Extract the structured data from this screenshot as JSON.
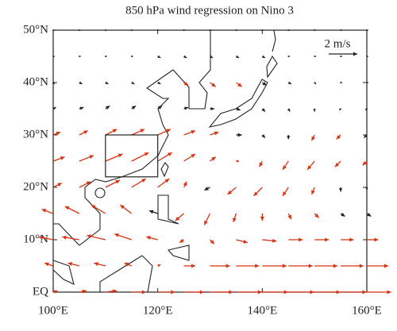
{
  "chart_data": {
    "type": "quiver",
    "title": "850 hPa wind regression on Nino 3",
    "lon": [
      100,
      105,
      110,
      115,
      120,
      125,
      130,
      135,
      140,
      145,
      150,
      155,
      160
    ],
    "lat": [
      0,
      5,
      10,
      15,
      20,
      25,
      30,
      35,
      40,
      45,
      50
    ],
    "u": [
      [
        0.3,
        0.5,
        0.8,
        1.0,
        1.2,
        1.4,
        1.6,
        1.8,
        1.8,
        1.8,
        1.8,
        1.8,
        1.7
      ],
      [
        -0.6,
        -0.8,
        -0.8,
        -0.5,
        0.2,
        0.8,
        1.4,
        1.6,
        1.7,
        1.7,
        1.6,
        1.6,
        1.5
      ],
      [
        -1.0,
        -1.2,
        -1.3,
        -1.2,
        -0.8,
        -0.3,
        0.3,
        0.8,
        1.0,
        1.0,
        1.0,
        0.9,
        0.8
      ],
      [
        -0.8,
        -1.0,
        -1.0,
        -0.8,
        -0.6,
        -0.6,
        -0.4,
        -0.2,
        0,
        0.2,
        0.3,
        0.3,
        0.3
      ],
      [
        0.6,
        0.8,
        1.0,
        1.0,
        0.8,
        0.2,
        -0.4,
        -0.6,
        -0.6,
        -0.4,
        -0.2,
        0,
        0
      ],
      [
        0.8,
        1.0,
        1.2,
        1.2,
        1.0,
        0.8,
        0.4,
        0.2,
        -0.2,
        -0.4,
        -0.5,
        -0.4,
        -0.3
      ],
      [
        0.5,
        0.6,
        0.8,
        0.9,
        0.9,
        0.8,
        0.6,
        0.4,
        0.2,
        0,
        -0.2,
        -0.3,
        -0.2
      ],
      [
        0.2,
        0.3,
        0.3,
        0.3,
        0.3,
        0.3,
        0.3,
        0.3,
        0.2,
        0.1,
        0,
        -0.1,
        -0.1
      ],
      [
        0.1,
        0.2,
        0.2,
        0.2,
        0.2,
        0.3,
        0.4,
        0.4,
        0.3,
        0.2,
        0.1,
        0.1,
        0.1
      ],
      [
        0.1,
        0.1,
        0.1,
        0.1,
        0.2,
        0.2,
        0.2,
        0.2,
        0.2,
        0.1,
        0.1,
        0.1,
        0.1
      ],
      [
        0.1,
        0.1,
        0.1,
        0.1,
        0.1,
        0.1,
        0.1,
        0.1,
        0.1,
        0.1,
        0.1,
        0.1,
        0.1
      ]
    ],
    "v": [
      [
        0.1,
        0.1,
        0.1,
        0,
        0,
        0,
        0,
        0,
        0,
        0,
        0,
        0,
        0
      ],
      [
        0.2,
        0.2,
        0.2,
        0.2,
        0.1,
        0,
        0,
        0,
        0,
        0,
        0,
        0,
        0
      ],
      [
        0.2,
        0.2,
        0.3,
        0.4,
        0.2,
        -0.2,
        -0.3,
        -0.2,
        -0.1,
        0,
        0,
        0,
        0
      ],
      [
        0.3,
        0.5,
        0.6,
        0.6,
        0.2,
        -0.5,
        -0.8,
        -0.6,
        -0.5,
        -0.4,
        -0.3,
        -0.2,
        -0.2
      ],
      [
        0.3,
        0.4,
        0.5,
        0.6,
        0.6,
        0.4,
        -0.2,
        -0.5,
        -0.6,
        -0.6,
        -0.5,
        -0.3,
        -0.2
      ],
      [
        0.3,
        0.4,
        0.5,
        0.6,
        0.6,
        0.5,
        0.3,
        0,
        -0.4,
        -0.6,
        -0.6,
        -0.4,
        -0.3
      ],
      [
        0.2,
        0.3,
        0.4,
        0.4,
        0.4,
        0.3,
        0.2,
        0,
        -0.2,
        -0.3,
        -0.4,
        -0.3,
        -0.2
      ],
      [
        0.1,
        0.1,
        0.2,
        0.2,
        0.2,
        0.1,
        0,
        -0.1,
        -0.2,
        -0.2,
        -0.2,
        -0.1,
        -0.1
      ],
      [
        -0.1,
        -0.1,
        -0.1,
        -0.1,
        -0.1,
        -0.2,
        -0.3,
        -0.3,
        -0.2,
        -0.1,
        -0.1,
        0,
        0
      ],
      [
        0,
        0,
        0,
        0,
        -0.1,
        -0.1,
        -0.1,
        -0.1,
        -0.1,
        0,
        0,
        0,
        0
      ],
      [
        0,
        0,
        0,
        0,
        0,
        0,
        0,
        0,
        0,
        0,
        0,
        0,
        0
      ]
    ],
    "significant": [
      [
        true,
        true,
        true,
        true,
        true,
        true,
        true,
        true,
        true,
        true,
        true,
        true,
        true
      ],
      [
        true,
        true,
        true,
        true,
        true,
        true,
        true,
        true,
        true,
        true,
        true,
        true,
        true
      ],
      [
        true,
        true,
        true,
        true,
        true,
        true,
        true,
        true,
        true,
        true,
        true,
        true,
        true
      ],
      [
        true,
        true,
        true,
        true,
        false,
        true,
        true,
        true,
        true,
        true,
        true,
        false,
        false
      ],
      [
        true,
        true,
        true,
        true,
        true,
        true,
        false,
        true,
        true,
        true,
        true,
        false,
        false
      ],
      [
        true,
        true,
        true,
        true,
        true,
        true,
        true,
        true,
        true,
        true,
        true,
        true,
        true
      ],
      [
        true,
        true,
        true,
        true,
        true,
        true,
        true,
        false,
        false,
        false,
        true,
        true,
        false
      ],
      [
        false,
        false,
        false,
        false,
        false,
        false,
        false,
        false,
        false,
        false,
        false,
        false,
        false
      ],
      [
        false,
        false,
        false,
        false,
        false,
        true,
        true,
        true,
        false,
        false,
        false,
        false,
        false
      ],
      [
        false,
        false,
        false,
        false,
        false,
        false,
        false,
        false,
        false,
        false,
        false,
        false,
        false
      ],
      [
        false,
        false,
        false,
        false,
        false,
        false,
        false,
        false,
        false,
        false,
        false,
        false,
        false
      ]
    ],
    "significant_color": "#d9310f",
    "color": "#222222",
    "reference": {
      "value": 2,
      "label": "2 m/s"
    },
    "box": {
      "lon": [
        110,
        120
      ],
      "lat": [
        22,
        30
      ]
    },
    "xlim": [
      100,
      160
    ],
    "ylim": [
      0,
      50
    ],
    "xticks": [
      {
        "value": 100,
        "label": "100°E"
      },
      {
        "value": 120,
        "label": "120°E"
      },
      {
        "value": 140,
        "label": "140°E"
      },
      {
        "value": 160,
        "label": "160°E"
      }
    ],
    "yticks": [
      {
        "value": 0,
        "label": "EQ"
      },
      {
        "value": 10,
        "label": "10°N"
      },
      {
        "value": 20,
        "label": "20°N"
      },
      {
        "value": 30,
        "label": "30°N"
      },
      {
        "value": 40,
        "label": "40°N"
      },
      {
        "value": 50,
        "label": "50°N"
      }
    ]
  }
}
